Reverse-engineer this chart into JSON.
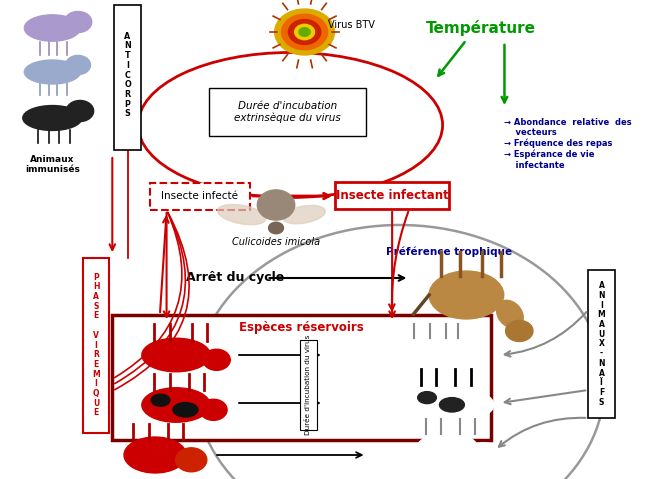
{
  "bg_color": "#ffffff",
  "anticorps_label": "A\nN\nT\nI\nC\nO\nR\nP\nS",
  "animaux_immunises": "Animaux\nimmunisés",
  "phase_viremique": "P\nH\nA\nS\nE\n \nV\nI\nR\nE\nM\nI\nQ\nU\nE",
  "animaux_naifs": "A\nN\nI\nM\nA\nU\nX\n-\nN\nA\nÏ\nF\nS",
  "virus_btv": "Virus BTV",
  "duree_incubation_ext": "Durée d'incubation\nextrinsèque du virus",
  "insecte_infecte": "Insecte infecté",
  "insecte_infectant": "Insecte infectant",
  "culicoides": "Culicoides imicola",
  "temperature": "Température",
  "abondance_text": "→ Abondance  relative  des\n    vecteurs\n→ Fréquence des repas\n→ Espérance de vie\n    infectante",
  "preference_trophique": "Préférence trophique",
  "arret_du_cycle": "Arrêt du cycle",
  "especes_reservoirs": "Espèces réservoirs",
  "duree_incubation_int": "Durée d'incubation du virus",
  "red": "#cc0000",
  "dark_red": "#7a0000",
  "green": "#009900",
  "dark_blue": "#00008b",
  "black": "#000000",
  "gray": "#888888"
}
